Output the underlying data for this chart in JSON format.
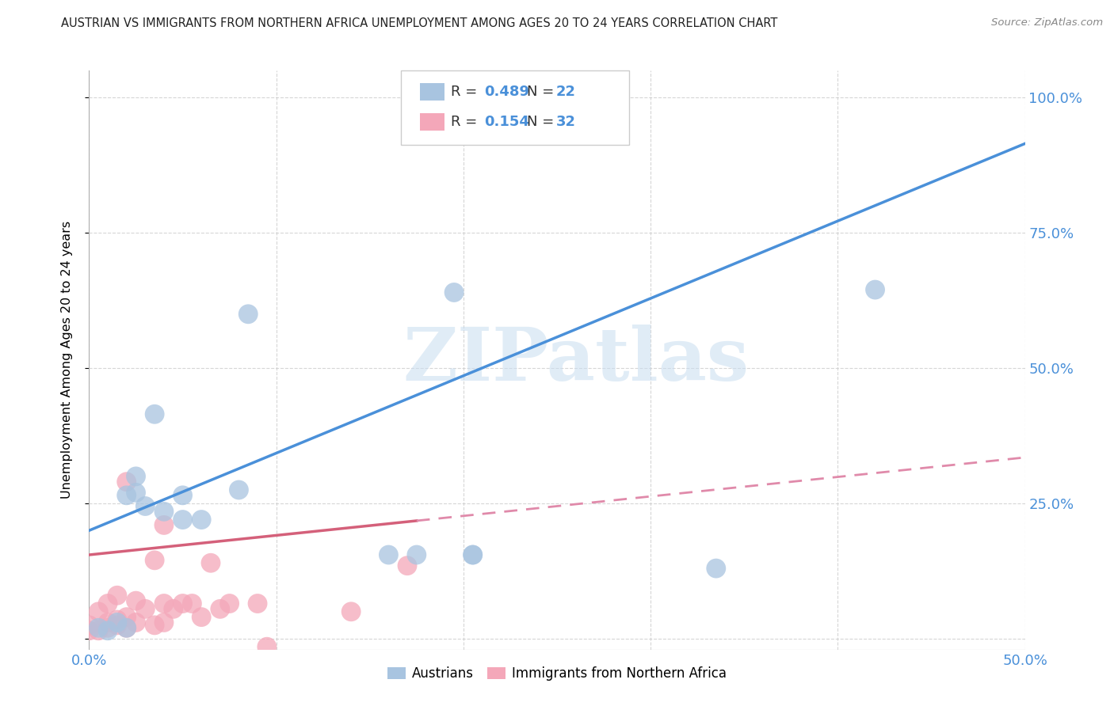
{
  "title": "AUSTRIAN VS IMMIGRANTS FROM NORTHERN AFRICA UNEMPLOYMENT AMONG AGES 20 TO 24 YEARS CORRELATION CHART",
  "source": "Source: ZipAtlas.com",
  "ylabel": "Unemployment Among Ages 20 to 24 years",
  "xlim": [
    0.0,
    0.5
  ],
  "ylim": [
    -0.02,
    1.05
  ],
  "xtick_positions": [
    0.0,
    0.1,
    0.2,
    0.3,
    0.4,
    0.5
  ],
  "xticklabels": [
    "0.0%",
    "",
    "",
    "",
    "",
    "50.0%"
  ],
  "ytick_positions": [
    0.0,
    0.25,
    0.5,
    0.75,
    1.0
  ],
  "yticklabels_right": [
    "",
    "25.0%",
    "50.0%",
    "75.0%",
    "100.0%"
  ],
  "austrians_R": "0.489",
  "austrians_N": "22",
  "immigrants_R": "0.154",
  "immigrants_N": "32",
  "austrians_color": "#a8c4e0",
  "immigrants_color": "#f4a7b9",
  "line_austrians_color": "#4a90d9",
  "line_immigrants_solid_color": "#d4607a",
  "line_immigrants_dash_color": "#e08aaa",
  "watermark": "ZIPatlas",
  "austrians_line_x0": 0.0,
  "austrians_line_y0": 0.2,
  "austrians_line_x1": 0.5,
  "austrians_line_y1": 0.915,
  "immigrants_line_x0": 0.0,
  "immigrants_line_y0": 0.155,
  "immigrants_line_solid_x1": 0.175,
  "immigrants_line_solid_y1": 0.195,
  "immigrants_line_dash_x1": 0.5,
  "immigrants_line_dash_y1": 0.335,
  "austrians_x": [
    0.005,
    0.01,
    0.015,
    0.02,
    0.02,
    0.025,
    0.025,
    0.03,
    0.035,
    0.04,
    0.05,
    0.05,
    0.06,
    0.08,
    0.085,
    0.16,
    0.175,
    0.195,
    0.205,
    0.205,
    0.335,
    0.42
  ],
  "austrians_y": [
    0.02,
    0.015,
    0.03,
    0.02,
    0.265,
    0.27,
    0.3,
    0.245,
    0.415,
    0.235,
    0.265,
    0.22,
    0.22,
    0.275,
    0.6,
    0.155,
    0.155,
    0.64,
    0.155,
    0.155,
    0.13,
    0.645
  ],
  "immigrants_x": [
    0.0,
    0.0,
    0.005,
    0.005,
    0.01,
    0.01,
    0.01,
    0.015,
    0.015,
    0.015,
    0.02,
    0.02,
    0.02,
    0.025,
    0.025,
    0.03,
    0.035,
    0.035,
    0.04,
    0.04,
    0.04,
    0.045,
    0.05,
    0.055,
    0.06,
    0.065,
    0.07,
    0.075,
    0.09,
    0.095,
    0.14,
    0.17
  ],
  "immigrants_y": [
    0.015,
    0.025,
    0.015,
    0.05,
    0.02,
    0.03,
    0.065,
    0.025,
    0.035,
    0.08,
    0.02,
    0.04,
    0.29,
    0.03,
    0.07,
    0.055,
    0.025,
    0.145,
    0.03,
    0.065,
    0.21,
    0.055,
    0.065,
    0.065,
    0.04,
    0.14,
    0.055,
    0.065,
    0.065,
    -0.015,
    0.05,
    0.135
  ]
}
